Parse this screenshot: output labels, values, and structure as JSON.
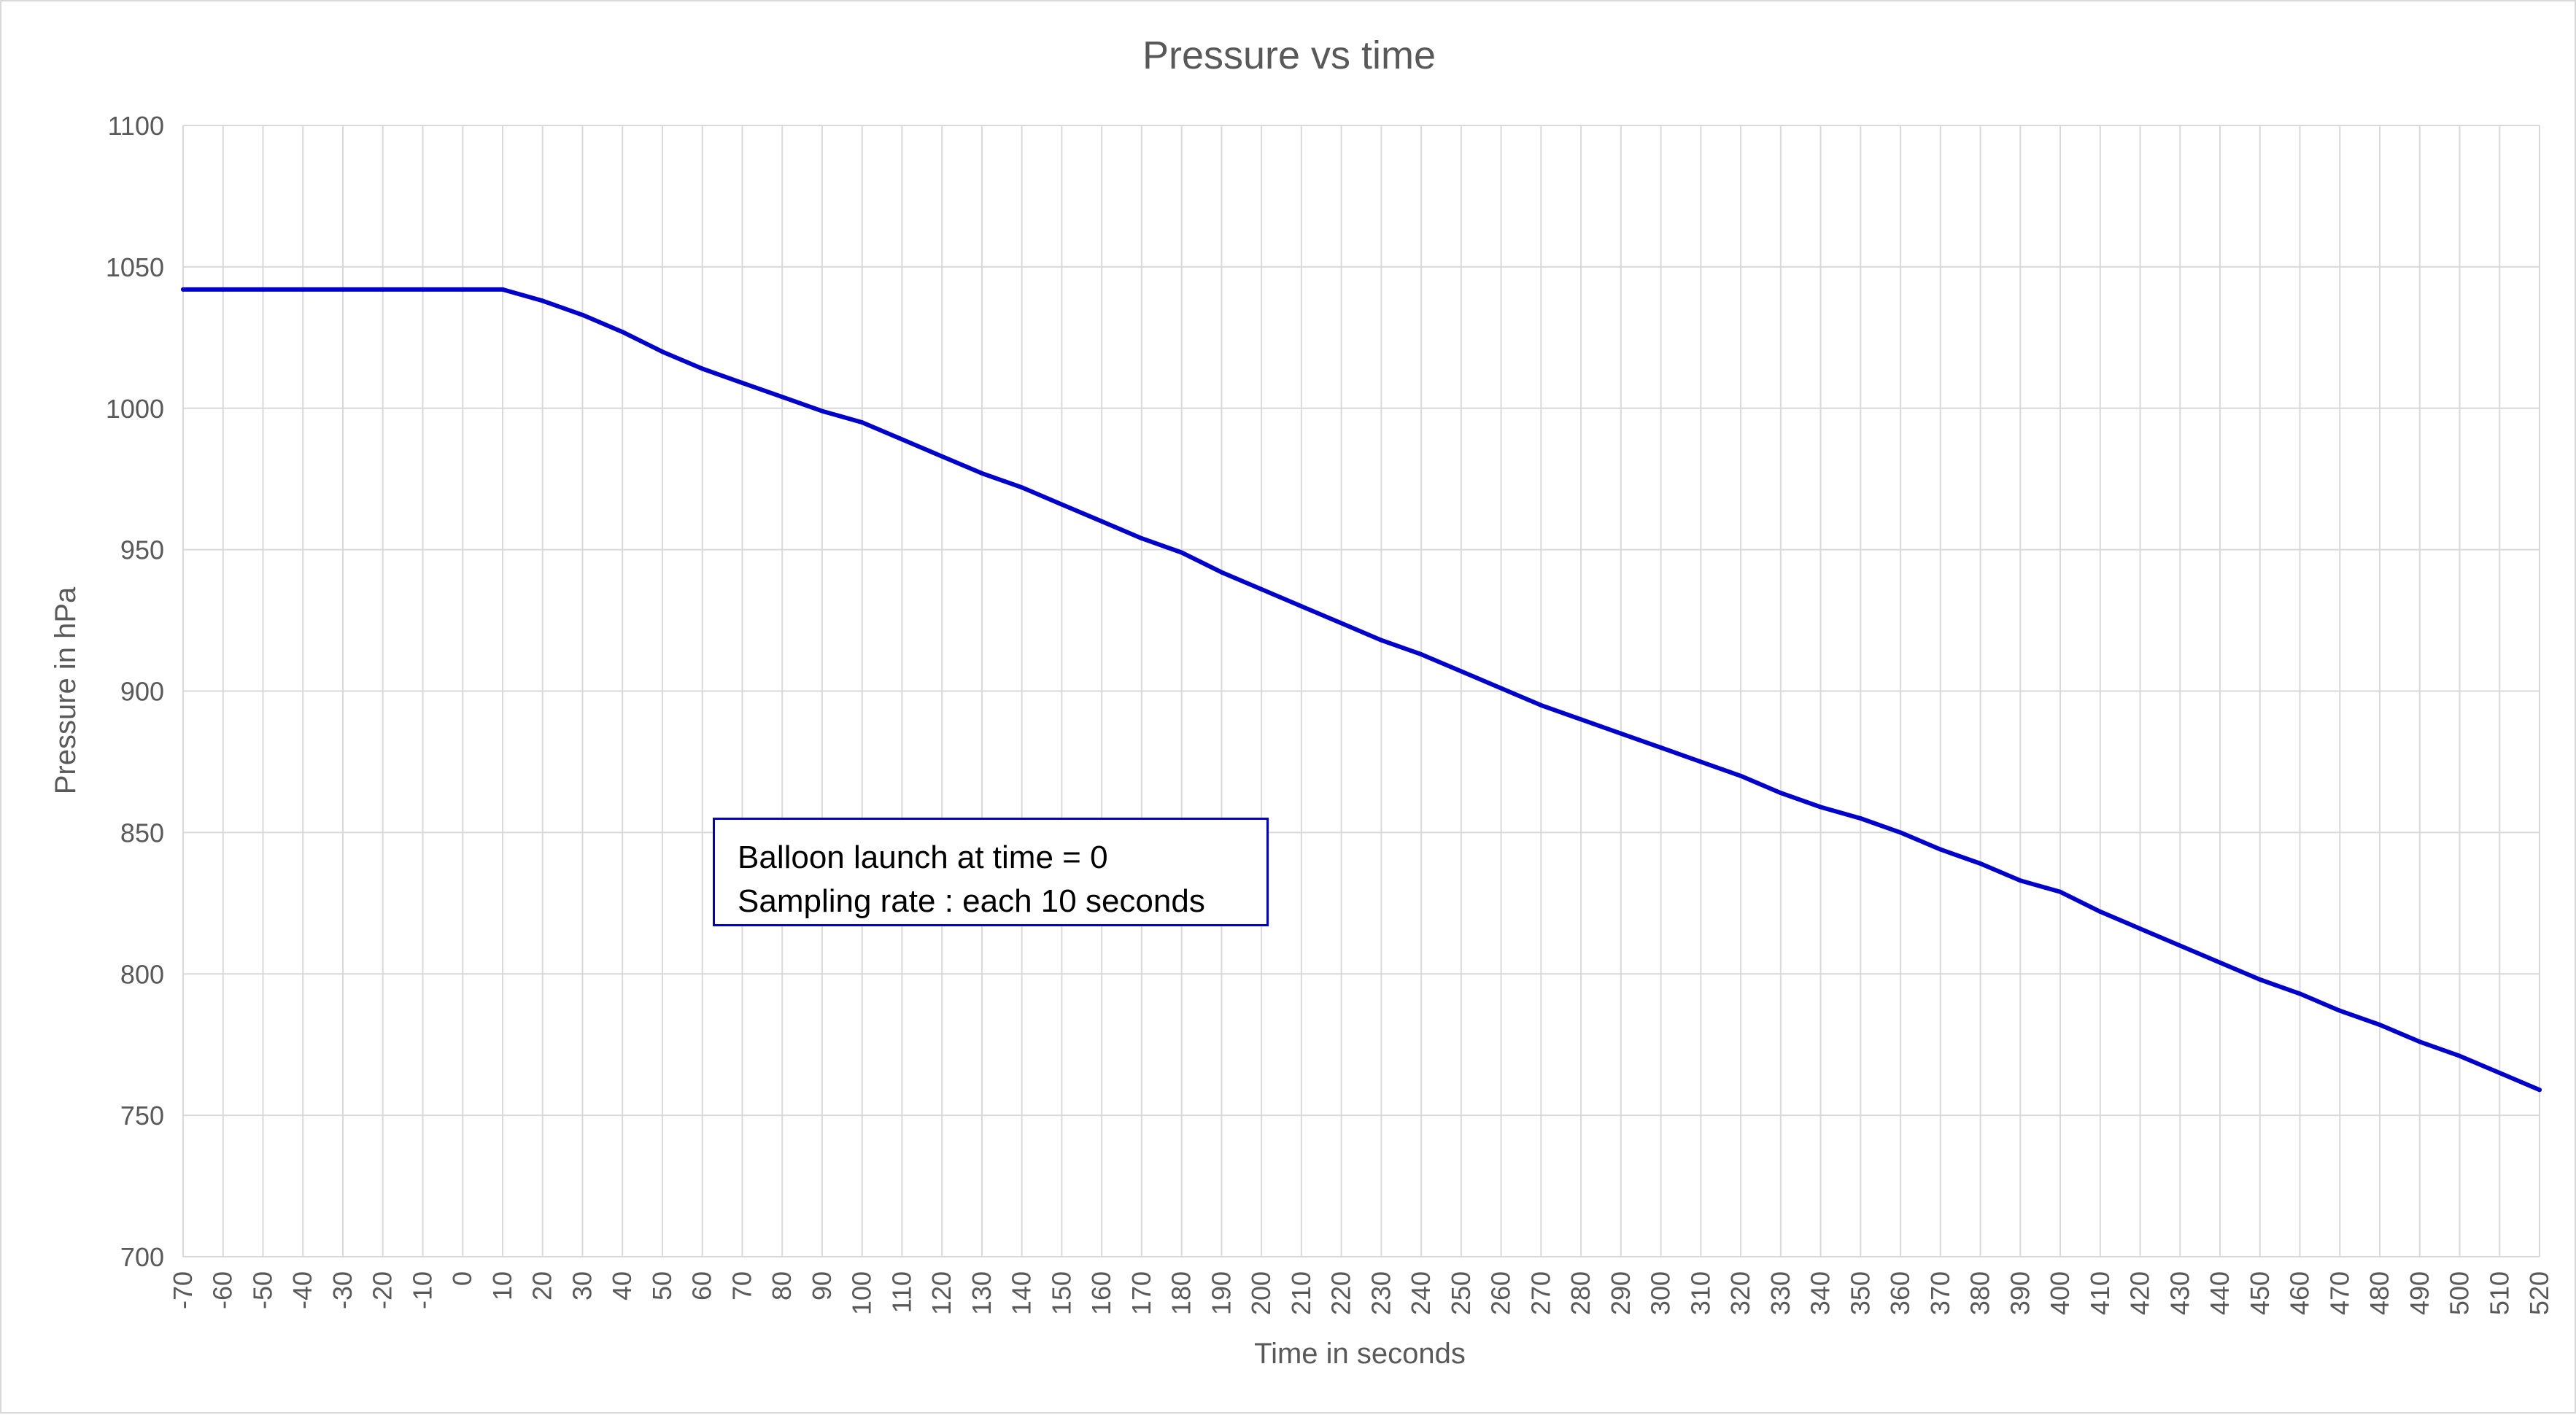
{
  "chart_data": {
    "type": "line",
    "title": "Pressure vs time",
    "xlabel": "Time in seconds",
    "ylabel": "Pressure in hPa",
    "ylim": [
      700,
      1100
    ],
    "yticks": [
      700,
      750,
      800,
      850,
      900,
      950,
      1000,
      1050,
      1100
    ],
    "grid": true,
    "legend": "none",
    "line_color": "#0000cc",
    "x": [
      -70,
      -60,
      -50,
      -40,
      -30,
      -20,
      -10,
      0,
      10,
      20,
      30,
      40,
      50,
      60,
      70,
      80,
      90,
      100,
      110,
      120,
      130,
      140,
      150,
      160,
      170,
      180,
      190,
      200,
      210,
      220,
      230,
      240,
      250,
      260,
      270,
      280,
      290,
      300,
      310,
      320,
      330,
      340,
      350,
      360,
      370,
      380,
      390,
      400,
      410,
      420,
      430,
      440,
      450,
      460,
      470,
      480,
      490,
      500,
      510,
      520
    ],
    "series": [
      {
        "values": [
          1042,
          1042,
          1042,
          1042,
          1042,
          1042,
          1042,
          1042,
          1042,
          1038,
          1033,
          1027,
          1020,
          1014,
          1009,
          1004,
          999,
          995,
          989,
          983,
          977,
          972,
          966,
          960,
          954,
          949,
          942,
          936,
          930,
          924,
          918,
          913,
          907,
          901,
          895,
          890,
          885,
          880,
          875,
          870,
          864,
          859,
          855,
          850,
          844,
          839,
          833,
          829,
          822,
          816,
          810,
          804,
          798,
          793,
          787,
          782,
          776,
          771,
          765,
          759
        ]
      }
    ],
    "annotations": [
      "Balloon launch at time = 0",
      "Sampling rate : each 10 seconds"
    ]
  }
}
